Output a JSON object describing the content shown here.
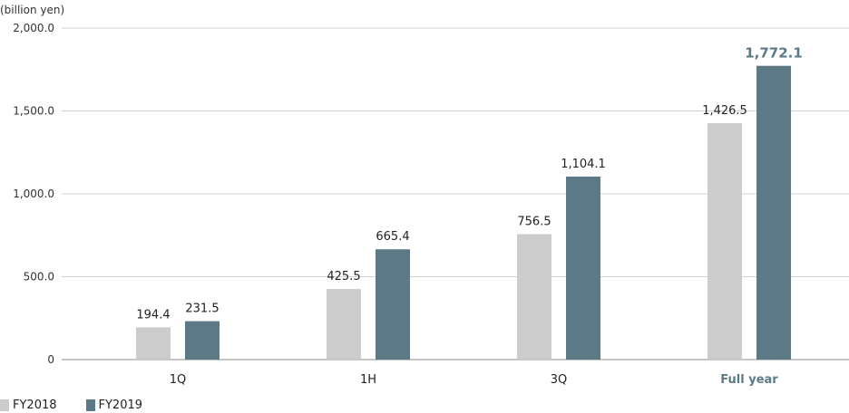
{
  "chart_data": {
    "type": "bar",
    "unit_label": "(billion yen)",
    "categories": [
      "1Q",
      "1H",
      "3Q",
      "Full year"
    ],
    "highlight_category": "Full year",
    "series": [
      {
        "name": "FY2018",
        "values": [
          194.4,
          425.5,
          756.5,
          1426.5
        ],
        "labels": [
          "194.4",
          "425.5",
          "756.5",
          "1,426.5"
        ],
        "color": "#cccccc"
      },
      {
        "name": "FY2019",
        "values": [
          231.5,
          665.4,
          1104.1,
          1772.1
        ],
        "labels": [
          "231.5",
          "665.4",
          "1,104.1",
          "1,772.1"
        ],
        "color": "#5b7a86"
      }
    ],
    "ylim": [
      0,
      2000
    ],
    "yticks": [
      0,
      500,
      1000,
      1500,
      2000
    ],
    "ytick_labels": [
      "0",
      "500.0",
      "1,000.0",
      "1,500.0",
      "2,000.0"
    ],
    "grid": true,
    "legend_position": "bottom-left",
    "highlight_color": "#5b7a86"
  }
}
